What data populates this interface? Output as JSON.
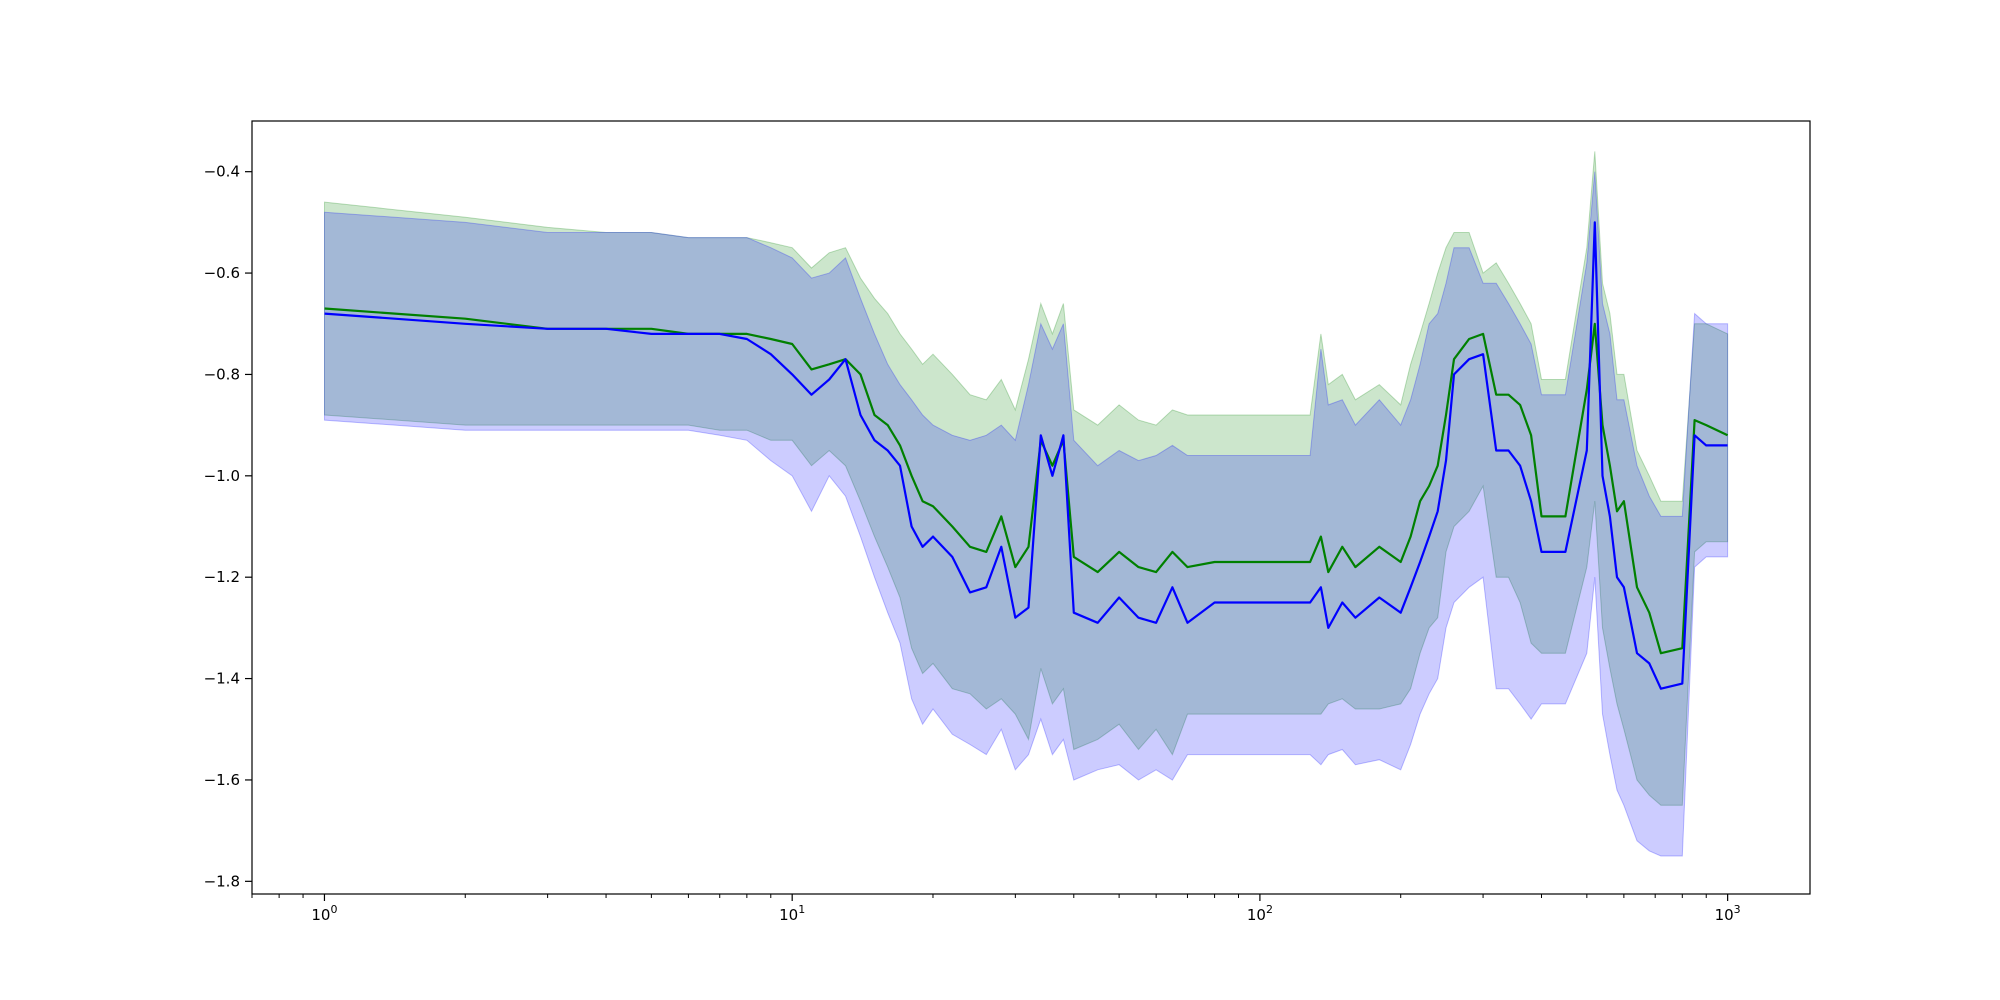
{
  "chart_data": {
    "type": "line",
    "title": "",
    "xlabel": "",
    "ylabel": "",
    "x_scale": "log",
    "xlim": [
      0.7,
      1500
    ],
    "ylim": [
      -1.825,
      -0.3
    ],
    "grid": false,
    "legend": "none",
    "x_ticks": [
      {
        "value": 1,
        "base": "10",
        "exp": "0"
      },
      {
        "value": 10,
        "base": "10",
        "exp": "1"
      },
      {
        "value": 100,
        "base": "10",
        "exp": "2"
      },
      {
        "value": 1000,
        "base": "10",
        "exp": "3"
      }
    ],
    "y_ticks": [
      {
        "value": -0.4,
        "label": "−0.4"
      },
      {
        "value": -0.6,
        "label": "−0.6"
      },
      {
        "value": -0.8,
        "label": "−0.8"
      },
      {
        "value": -1.0,
        "label": "−1.0"
      },
      {
        "value": -1.2,
        "label": "−1.2"
      },
      {
        "value": -1.4,
        "label": "−1.4"
      },
      {
        "value": -1.6,
        "label": "−1.6"
      },
      {
        "value": -1.8,
        "label": "−1.8"
      }
    ],
    "series": [
      {
        "color": "#008000",
        "band_color": "#008000",
        "band_opacity": 0.2,
        "x": [
          1,
          2,
          3,
          4,
          5,
          6,
          7,
          8,
          9,
          10,
          11,
          12,
          13,
          14,
          15,
          16,
          17,
          18,
          19,
          20,
          22,
          24,
          26,
          28,
          30,
          32,
          34,
          36,
          38,
          40,
          45,
          50,
          55,
          60,
          65,
          70,
          80,
          100,
          128,
          135,
          140,
          150,
          160,
          180,
          200,
          210,
          220,
          230,
          240,
          250,
          260,
          280,
          300,
          320,
          340,
          360,
          380,
          400,
          450,
          500,
          520,
          540,
          560,
          580,
          600,
          640,
          680,
          720,
          800,
          850,
          900,
          1000
        ],
        "mean": [
          -0.67,
          -0.69,
          -0.71,
          -0.71,
          -0.71,
          -0.72,
          -0.72,
          -0.72,
          -0.73,
          -0.74,
          -0.79,
          -0.78,
          -0.77,
          -0.8,
          -0.88,
          -0.9,
          -0.94,
          -1.0,
          -1.05,
          -1.06,
          -1.1,
          -1.14,
          -1.15,
          -1.08,
          -1.18,
          -1.14,
          -0.93,
          -0.98,
          -0.93,
          -1.16,
          -1.19,
          -1.15,
          -1.18,
          -1.19,
          -1.15,
          -1.18,
          -1.17,
          -1.17,
          -1.17,
          -1.12,
          -1.19,
          -1.14,
          -1.18,
          -1.14,
          -1.17,
          -1.12,
          -1.05,
          -1.02,
          -0.98,
          -0.88,
          -0.77,
          -0.73,
          -0.72,
          -0.84,
          -0.84,
          -0.86,
          -0.92,
          -1.08,
          -1.08,
          -0.83,
          -0.7,
          -0.9,
          -0.98,
          -1.07,
          -1.05,
          -1.22,
          -1.27,
          -1.35,
          -1.34,
          -0.89,
          -0.9,
          -0.92
        ],
        "lower": [
          -0.88,
          -0.9,
          -0.9,
          -0.9,
          -0.9,
          -0.9,
          -0.91,
          -0.91,
          -0.93,
          -0.93,
          -0.98,
          -0.95,
          -0.98,
          -1.05,
          -1.12,
          -1.18,
          -1.24,
          -1.34,
          -1.39,
          -1.37,
          -1.42,
          -1.43,
          -1.46,
          -1.44,
          -1.47,
          -1.52,
          -1.38,
          -1.45,
          -1.42,
          -1.54,
          -1.52,
          -1.49,
          -1.54,
          -1.5,
          -1.55,
          -1.47,
          -1.47,
          -1.47,
          -1.47,
          -1.47,
          -1.45,
          -1.44,
          -1.46,
          -1.46,
          -1.45,
          -1.42,
          -1.35,
          -1.3,
          -1.28,
          -1.15,
          -1.1,
          -1.07,
          -1.02,
          -1.2,
          -1.2,
          -1.25,
          -1.33,
          -1.35,
          -1.35,
          -1.18,
          -1.05,
          -1.3,
          -1.38,
          -1.45,
          -1.5,
          -1.6,
          -1.63,
          -1.65,
          -1.65,
          -1.15,
          -1.13,
          -1.13
        ],
        "upper": [
          -0.46,
          -0.49,
          -0.51,
          -0.52,
          -0.52,
          -0.53,
          -0.53,
          -0.53,
          -0.54,
          -0.55,
          -0.59,
          -0.56,
          -0.55,
          -0.61,
          -0.65,
          -0.68,
          -0.72,
          -0.75,
          -0.78,
          -0.76,
          -0.8,
          -0.84,
          -0.85,
          -0.81,
          -0.87,
          -0.77,
          -0.66,
          -0.72,
          -0.66,
          -0.87,
          -0.9,
          -0.86,
          -0.89,
          -0.9,
          -0.87,
          -0.88,
          -0.88,
          -0.88,
          -0.88,
          -0.72,
          -0.82,
          -0.8,
          -0.85,
          -0.82,
          -0.86,
          -0.78,
          -0.72,
          -0.66,
          -0.6,
          -0.55,
          -0.52,
          -0.52,
          -0.6,
          -0.58,
          -0.62,
          -0.66,
          -0.7,
          -0.81,
          -0.81,
          -0.55,
          -0.36,
          -0.62,
          -0.68,
          -0.8,
          -0.8,
          -0.95,
          -1.0,
          -1.05,
          -1.05,
          -0.7,
          -0.7,
          -0.72
        ]
      },
      {
        "color": "#0000ff",
        "band_color": "#0000ff",
        "band_opacity": 0.2,
        "x": [
          1,
          2,
          3,
          4,
          5,
          6,
          7,
          8,
          9,
          10,
          11,
          12,
          13,
          14,
          15,
          16,
          17,
          18,
          19,
          20,
          22,
          24,
          26,
          28,
          30,
          32,
          34,
          36,
          38,
          40,
          45,
          50,
          55,
          60,
          65,
          70,
          80,
          100,
          128,
          135,
          140,
          150,
          160,
          180,
          200,
          210,
          220,
          230,
          240,
          250,
          260,
          280,
          300,
          320,
          340,
          360,
          380,
          400,
          450,
          500,
          520,
          540,
          560,
          580,
          600,
          640,
          680,
          720,
          800,
          850,
          900,
          1000
        ],
        "mean": [
          -0.68,
          -0.7,
          -0.71,
          -0.71,
          -0.72,
          -0.72,
          -0.72,
          -0.73,
          -0.76,
          -0.8,
          -0.84,
          -0.81,
          -0.77,
          -0.88,
          -0.93,
          -0.95,
          -0.98,
          -1.1,
          -1.14,
          -1.12,
          -1.16,
          -1.23,
          -1.22,
          -1.14,
          -1.28,
          -1.26,
          -0.92,
          -1.0,
          -0.92,
          -1.27,
          -1.29,
          -1.24,
          -1.28,
          -1.29,
          -1.22,
          -1.29,
          -1.25,
          -1.25,
          -1.25,
          -1.22,
          -1.3,
          -1.25,
          -1.28,
          -1.24,
          -1.27,
          -1.22,
          -1.17,
          -1.12,
          -1.07,
          -0.97,
          -0.8,
          -0.77,
          -0.76,
          -0.95,
          -0.95,
          -0.98,
          -1.05,
          -1.15,
          -1.15,
          -0.95,
          -0.5,
          -1.0,
          -1.08,
          -1.2,
          -1.22,
          -1.35,
          -1.37,
          -1.42,
          -1.41,
          -0.92,
          -0.94,
          -0.94
        ],
        "lower": [
          -0.89,
          -0.91,
          -0.91,
          -0.91,
          -0.91,
          -0.91,
          -0.92,
          -0.93,
          -0.97,
          -1.0,
          -1.07,
          -1.0,
          -1.04,
          -1.12,
          -1.2,
          -1.27,
          -1.33,
          -1.44,
          -1.49,
          -1.46,
          -1.51,
          -1.53,
          -1.55,
          -1.5,
          -1.58,
          -1.55,
          -1.48,
          -1.55,
          -1.52,
          -1.6,
          -1.58,
          -1.57,
          -1.6,
          -1.58,
          -1.6,
          -1.55,
          -1.55,
          -1.55,
          -1.55,
          -1.57,
          -1.55,
          -1.54,
          -1.57,
          -1.56,
          -1.58,
          -1.53,
          -1.47,
          -1.43,
          -1.4,
          -1.3,
          -1.25,
          -1.22,
          -1.2,
          -1.42,
          -1.42,
          -1.45,
          -1.48,
          -1.45,
          -1.45,
          -1.35,
          -1.2,
          -1.47,
          -1.55,
          -1.62,
          -1.65,
          -1.72,
          -1.74,
          -1.75,
          -1.75,
          -1.18,
          -1.16,
          -1.16
        ],
        "upper": [
          -0.48,
          -0.5,
          -0.52,
          -0.52,
          -0.52,
          -0.53,
          -0.53,
          -0.53,
          -0.55,
          -0.57,
          -0.61,
          -0.6,
          -0.57,
          -0.65,
          -0.72,
          -0.78,
          -0.82,
          -0.85,
          -0.88,
          -0.9,
          -0.92,
          -0.93,
          -0.92,
          -0.9,
          -0.93,
          -0.82,
          -0.7,
          -0.75,
          -0.7,
          -0.93,
          -0.98,
          -0.95,
          -0.97,
          -0.96,
          -0.94,
          -0.96,
          -0.96,
          -0.96,
          -0.96,
          -0.75,
          -0.86,
          -0.85,
          -0.9,
          -0.85,
          -0.9,
          -0.85,
          -0.78,
          -0.7,
          -0.68,
          -0.62,
          -0.55,
          -0.55,
          -0.62,
          -0.62,
          -0.66,
          -0.7,
          -0.74,
          -0.84,
          -0.84,
          -0.58,
          -0.4,
          -0.66,
          -0.72,
          -0.85,
          -0.85,
          -0.98,
          -1.04,
          -1.08,
          -1.08,
          -0.68,
          -0.7,
          -0.7
        ]
      }
    ]
  }
}
